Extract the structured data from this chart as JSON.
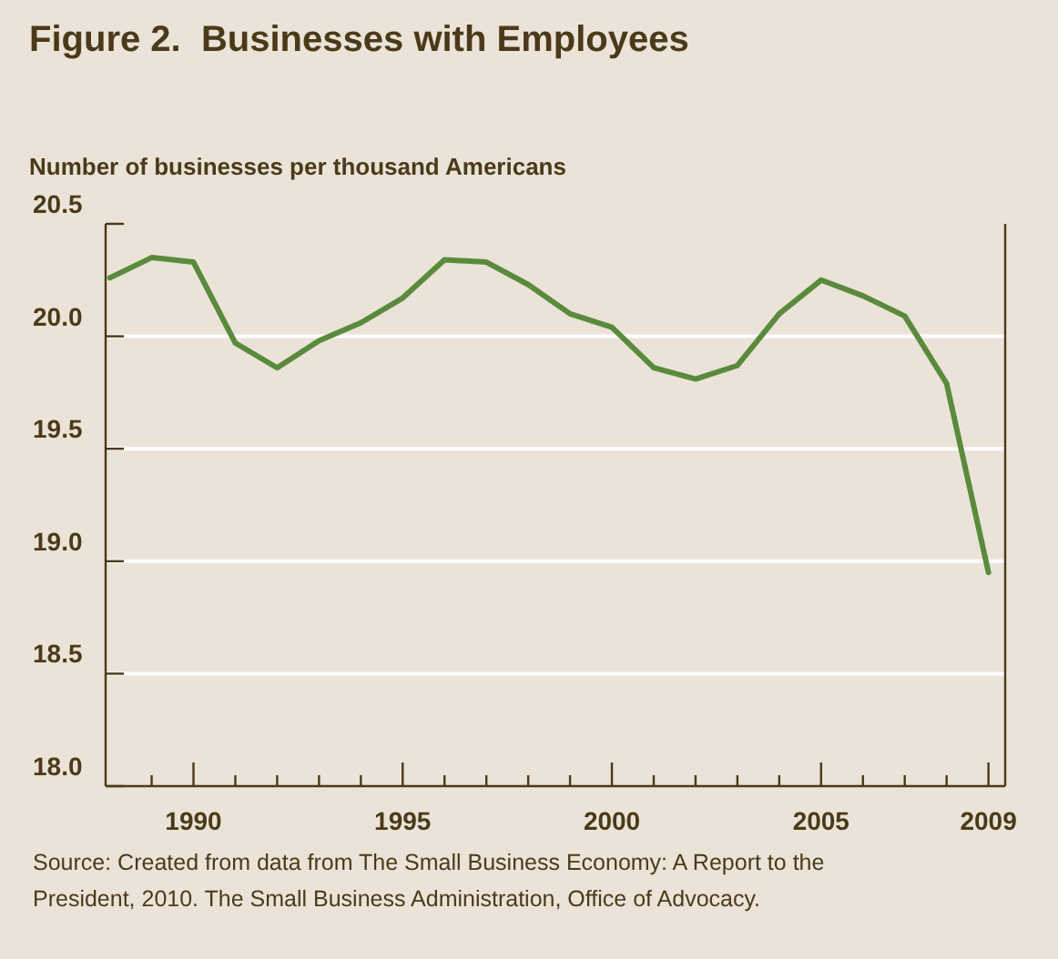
{
  "chart_data": {
    "type": "line",
    "title": "Figure 2.  Businesses with Employees",
    "ylabel": "Number of businesses per thousand Americans",
    "x": [
      1988,
      1989,
      1990,
      1991,
      1992,
      1993,
      1994,
      1995,
      1996,
      1997,
      1998,
      1999,
      2000,
      2001,
      2002,
      2003,
      2004,
      2005,
      2006,
      2007,
      2008,
      2009
    ],
    "series": [
      {
        "color": "#5a8a3c",
        "values": [
          20.26,
          20.35,
          20.33,
          19.97,
          19.86,
          19.98,
          20.06,
          20.17,
          20.34,
          20.33,
          20.23,
          20.1,
          20.04,
          19.86,
          19.81,
          19.87,
          20.1,
          20.25,
          20.18,
          20.09,
          19.79,
          18.95
        ]
      }
    ],
    "xlim": [
      1987.9,
      2009.4
    ],
    "xticks": [
      {
        "value": 1989,
        "label": null
      },
      1990,
      {
        "value": 1991,
        "label": null
      },
      {
        "value": 1992,
        "label": null
      },
      {
        "value": 1993,
        "label": null
      },
      {
        "value": 1994,
        "label": null
      },
      1995,
      {
        "value": 1996,
        "label": null
      },
      {
        "value": 1997,
        "label": null
      },
      {
        "value": 1998,
        "label": null
      },
      {
        "value": 1999,
        "label": null
      },
      2000,
      {
        "value": 2001,
        "label": null
      },
      {
        "value": 2002,
        "label": null
      },
      {
        "value": 2003,
        "label": null
      },
      {
        "value": 2004,
        "label": null
      },
      2005,
      {
        "value": 2006,
        "label": null
      },
      {
        "value": 2007,
        "label": null
      },
      {
        "value": 2008,
        "label": null
      },
      2009
    ],
    "ylim": [
      18,
      20.5
    ],
    "yticks": [
      {
        "value": 18,
        "label": "18.0"
      },
      18.5,
      {
        "value": 19,
        "label": "19.0"
      },
      19.5,
      {
        "value": 20,
        "label": "20.0"
      },
      20.5
    ],
    "grid": "y",
    "marker": "none",
    "line_style": "solid",
    "annotations": [
      "Source: Created from data from The Small Business Economy: A Report to the President, 2010. The Small Business Administration, Office of Advocacy."
    ]
  }
}
